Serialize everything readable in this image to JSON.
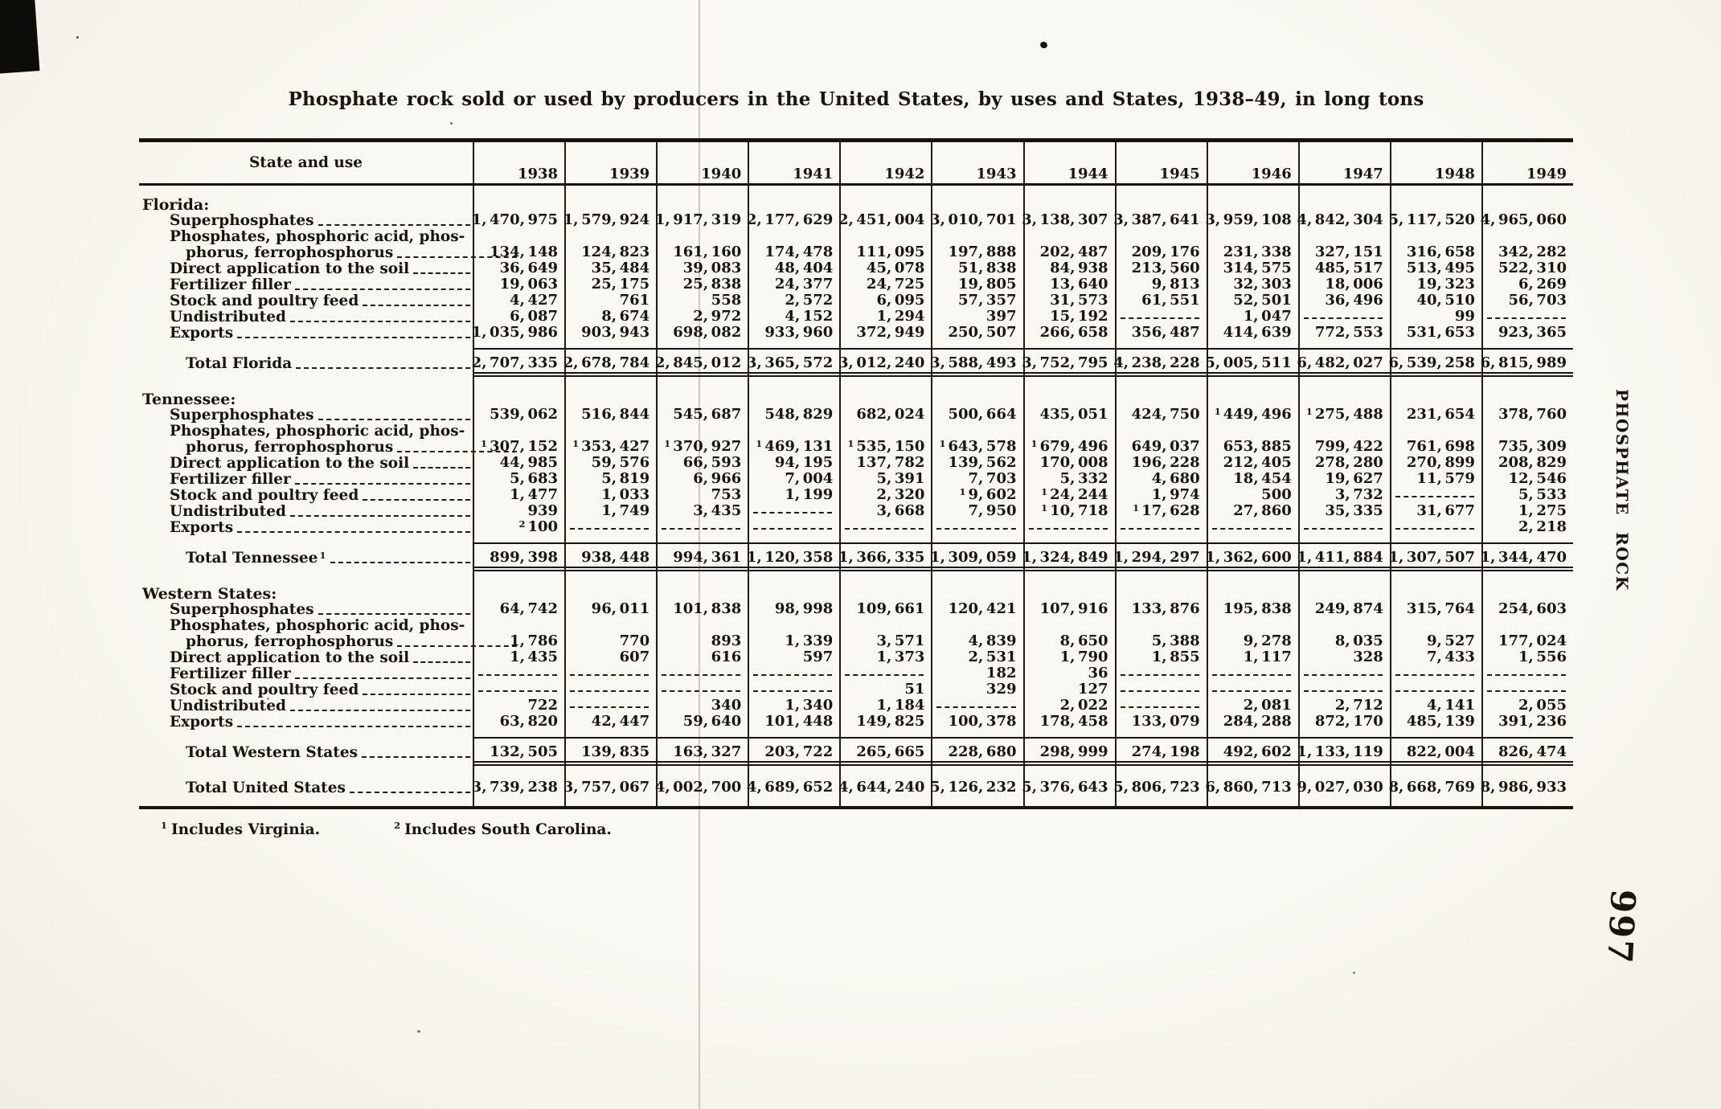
{
  "page": {
    "title": "Phosphate rock sold or used by producers in the United States, by uses and States, 1938–49, in long tons",
    "side_label": "PHOSPHATE ROCK",
    "page_number": "997",
    "footnotes": [
      {
        "marker": "1",
        "text": "Includes Virginia."
      },
      {
        "marker": "2",
        "text": "Includes South Carolina."
      }
    ]
  },
  "table": {
    "stub_header": "State and use",
    "columns": [
      "1938",
      "1939",
      "1940",
      "1941",
      "1942",
      "1943",
      "1944",
      "1945",
      "1946",
      "1947",
      "1948",
      "1949"
    ],
    "sections": [
      {
        "name": "Florida:",
        "rows": [
          {
            "label": "Superphosphates",
            "values": [
              "1,470,975",
              "1,579,924",
              "1,917,319",
              "2,177,629",
              "2,451,004",
              "3,010,701",
              "3,138,307",
              "3,387,641",
              "3,959,108",
              "4,842,304",
              "5,117,520",
              "4,965,060"
            ]
          },
          {
            "label": "Phosphates, phosphoric acid, phos-",
            "label2": "phorus, ferrophosphorus",
            "values": [
              "134,148",
              "124,823",
              "161,160",
              "174,478",
              "111,095",
              "197,888",
              "202,487",
              "209,176",
              "231,338",
              "327,151",
              "316,658",
              "342,282"
            ]
          },
          {
            "label": "Direct application to the soil",
            "values": [
              "36,649",
              "35,484",
              "39,083",
              "48,404",
              "45,078",
              "51,838",
              "84,938",
              "213,560",
              "314,575",
              "485,517",
              "513,495",
              "522,310"
            ]
          },
          {
            "label": "Fertilizer filler",
            "values": [
              "19,063",
              "25,175",
              "25,838",
              "24,377",
              "24,725",
              "19,805",
              "13,640",
              "9,813",
              "32,303",
              "18,006",
              "19,323",
              "6,269"
            ]
          },
          {
            "label": "Stock and poultry feed",
            "values": [
              "4,427",
              "761",
              "558",
              "2,572",
              "6,095",
              "57,357",
              "31,573",
              "61,551",
              "52,501",
              "36,496",
              "40,510",
              "56,703"
            ]
          },
          {
            "label": "Undistributed",
            "values": [
              "6,087",
              "8,674",
              "2,972",
              "4,152",
              "1,294",
              "397",
              "15,192",
              null,
              "1,047",
              null,
              "99",
              null
            ]
          },
          {
            "label": "Exports",
            "values": [
              "1,035,986",
              "903,943",
              "698,082",
              "933,960",
              "372,949",
              "250,507",
              "266,658",
              "356,487",
              "414,639",
              "772,553",
              "531,653",
              "923,365"
            ]
          }
        ],
        "total": {
          "label": "Total Florida",
          "values": [
            "2,707,335",
            "2,678,784",
            "2,845,012",
            "3,365,572",
            "3,012,240",
            "3,588,493",
            "3,752,795",
            "4,238,228",
            "5,005,511",
            "6,482,027",
            "6,539,258",
            "6,815,989"
          ]
        }
      },
      {
        "name": "Tennessee:",
        "rows": [
          {
            "label": "Superphosphates",
            "values": [
              "539,062",
              "516,844",
              "545,687",
              "548,829",
              "682,024",
              "500,664",
              "435,051",
              "424,750",
              {
                "fn": "1",
                "v": "449,496"
              },
              {
                "fn": "1",
                "v": "275,488"
              },
              "231,654",
              "378,760"
            ]
          },
          {
            "label": "Phosphates, phosphoric acid, phos-",
            "label2": "phorus, ferrophosphorus",
            "values": [
              {
                "fn": "1",
                "v": "307,152"
              },
              {
                "fn": "1",
                "v": "353,427"
              },
              {
                "fn": "1",
                "v": "370,927"
              },
              {
                "fn": "1",
                "v": "469,131"
              },
              {
                "fn": "1",
                "v": "535,150"
              },
              {
                "fn": "1",
                "v": "643,578"
              },
              {
                "fn": "1",
                "v": "679,496"
              },
              "649,037",
              "653,885",
              "799,422",
              "761,698",
              "735,309"
            ]
          },
          {
            "label": "Direct application to the soil",
            "values": [
              "44,985",
              "59,576",
              "66,593",
              "94,195",
              "137,782",
              "139,562",
              "170,008",
              "196,228",
              "212,405",
              "278,280",
              "270,899",
              "208,829"
            ]
          },
          {
            "label": "Fertilizer filler",
            "values": [
              "5,683",
              "5,819",
              "6,966",
              "7,004",
              "5,391",
              "7,703",
              "5,332",
              "4,680",
              "18,454",
              "19,627",
              "11,579",
              "12,546"
            ]
          },
          {
            "label": "Stock and poultry feed",
            "values": [
              "1,477",
              "1,033",
              "753",
              "1,199",
              "2,320",
              {
                "fn": "1",
                "v": "9,602"
              },
              {
                "fn": "1",
                "v": "24,244"
              },
              "1,974",
              "500",
              "3,732",
              null,
              "5,533"
            ]
          },
          {
            "label": "Undistributed",
            "values": [
              "939",
              "1,749",
              "3,435",
              null,
              "3,668",
              "7,950",
              {
                "fn": "1",
                "v": "10,718"
              },
              {
                "fn": "1",
                "v": "17,628"
              },
              "27,860",
              "35,335",
              "31,677",
              "1,275"
            ]
          },
          {
            "label": "Exports",
            "values": [
              {
                "fn": "2",
                "v": "100"
              },
              null,
              null,
              null,
              null,
              null,
              null,
              null,
              null,
              null,
              null,
              "2,218"
            ]
          }
        ],
        "total": {
          "label": "Total Tennessee",
          "fn": "1",
          "values": [
            "899,398",
            "938,448",
            "994,361",
            "1,120,358",
            "1,366,335",
            "1,309,059",
            "1,324,849",
            "1,294,297",
            "1,362,600",
            "1,411,884",
            "1,307,507",
            "1,344,470"
          ]
        }
      },
      {
        "name": "Western States:",
        "rows": [
          {
            "label": "Superphosphates",
            "values": [
              "64,742",
              "96,011",
              "101,838",
              "98,998",
              "109,661",
              "120,421",
              "107,916",
              "133,876",
              "195,838",
              "249,874",
              "315,764",
              "254,603"
            ]
          },
          {
            "label": "Phosphates, phosphoric acid, phos-",
            "label2": "phorus, ferrophosphorus",
            "values": [
              "1,786",
              "770",
              "893",
              "1,339",
              "3,571",
              "4,839",
              "8,650",
              "5,388",
              "9,278",
              "8,035",
              "9,527",
              "177,024"
            ]
          },
          {
            "label": "Direct application to the soil",
            "values": [
              "1,435",
              "607",
              "616",
              "597",
              "1,373",
              "2,531",
              "1,790",
              "1,855",
              "1,117",
              "328",
              "7,433",
              "1,556"
            ]
          },
          {
            "label": "Fertilizer filler",
            "values": [
              null,
              null,
              null,
              null,
              null,
              "182",
              "36",
              null,
              null,
              null,
              null,
              null
            ]
          },
          {
            "label": "Stock and poultry feed",
            "values": [
              null,
              null,
              null,
              null,
              "51",
              "329",
              "127",
              null,
              null,
              null,
              null,
              null
            ]
          },
          {
            "label": "Undistributed",
            "values": [
              "722",
              null,
              "340",
              "1,340",
              "1,184",
              null,
              "2,022",
              null,
              "2,081",
              "2,712",
              "4,141",
              "2,055"
            ]
          },
          {
            "label": "Exports",
            "values": [
              "63,820",
              "42,447",
              "59,640",
              "101,448",
              "149,825",
              "100,378",
              "178,458",
              "133,079",
              "284,288",
              "872,170",
              "485,139",
              "391,236"
            ]
          }
        ],
        "total": {
          "label": "Total Western States",
          "values": [
            "132,505",
            "139,835",
            "163,327",
            "203,722",
            "265,665",
            "228,680",
            "298,999",
            "274,198",
            "492,602",
            "1,133,119",
            "822,004",
            "826,474"
          ]
        }
      }
    ],
    "grand_total": {
      "label": "Total United States",
      "values": [
        "3,739,238",
        "3,757,067",
        "4,002,700",
        "4,689,652",
        "4,644,240",
        "5,126,232",
        "5,376,643",
        "5,806,723",
        "6,860,713",
        "9,027,030",
        "8,668,769",
        "8,986,933"
      ]
    }
  }
}
